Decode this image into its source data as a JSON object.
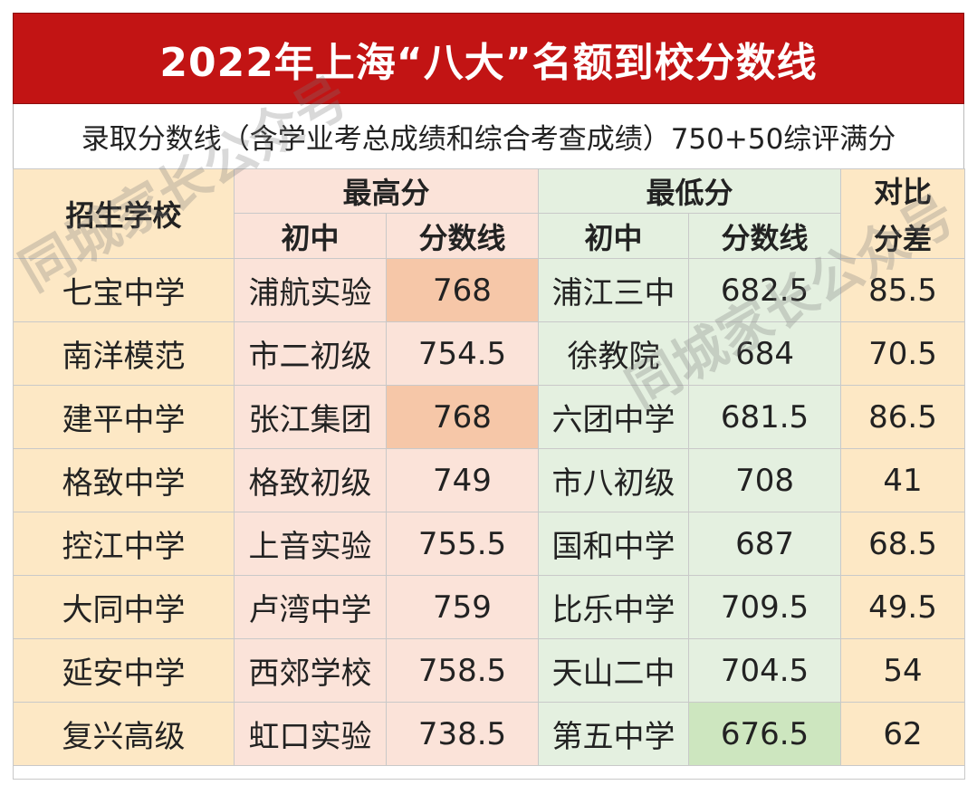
{
  "title": "2022年上海“八大”名额到校分数线",
  "subtitle": "录取分数线（含学业考总成绩和综合考查成绩）750+50综评满分",
  "headers": {
    "school": "招生学校",
    "highest": "最高分",
    "lowest": "最低分",
    "diff_line1": "对比",
    "diff_line2": "分差",
    "middle_school": "初中",
    "score_line": "分数线"
  },
  "rows": [
    {
      "school": "七宝中学",
      "high_ms": "浦航实验",
      "high_score": "768",
      "low_ms": "浦江三中",
      "low_score": "682.5",
      "diff": "85.5"
    },
    {
      "school": "南洋模范",
      "high_ms": "市二初级",
      "high_score": "754.5",
      "low_ms": "徐教院",
      "low_score": "684",
      "diff": "70.5"
    },
    {
      "school": "建平中学",
      "high_ms": "张江集团",
      "high_score": "768",
      "low_ms": "六团中学",
      "low_score": "681.5",
      "diff": "86.5"
    },
    {
      "school": "格致中学",
      "high_ms": "格致初级",
      "high_score": "749",
      "low_ms": "市八初级",
      "low_score": "708",
      "diff": "41"
    },
    {
      "school": "控江中学",
      "high_ms": "上音实验",
      "high_score": "755.5",
      "low_ms": "国和中学",
      "low_score": "687",
      "diff": "68.5"
    },
    {
      "school": "大同中学",
      "high_ms": "卢湾中学",
      "high_score": "759",
      "low_ms": "比乐中学",
      "low_score": "709.5",
      "diff": "49.5"
    },
    {
      "school": "延安中学",
      "high_ms": "西郊学校",
      "high_score": "758.5",
      "low_ms": "天山二中",
      "low_score": "704.5",
      "diff": "54"
    },
    {
      "school": "复兴高级",
      "high_ms": "虹口实验",
      "high_score": "738.5",
      "low_ms": "第五中学",
      "low_score": "676.5",
      "diff": "62"
    }
  ],
  "watermark": "同城家长公众号",
  "colors": {
    "title_bg": "#c21414",
    "school_col": "#fde8c5",
    "highest_col": "#fbe3d9",
    "highest_highlight": "#f6c7a8",
    "lowest_col": "#e4f0e0",
    "lowest_highlight": "#cde6bf"
  }
}
